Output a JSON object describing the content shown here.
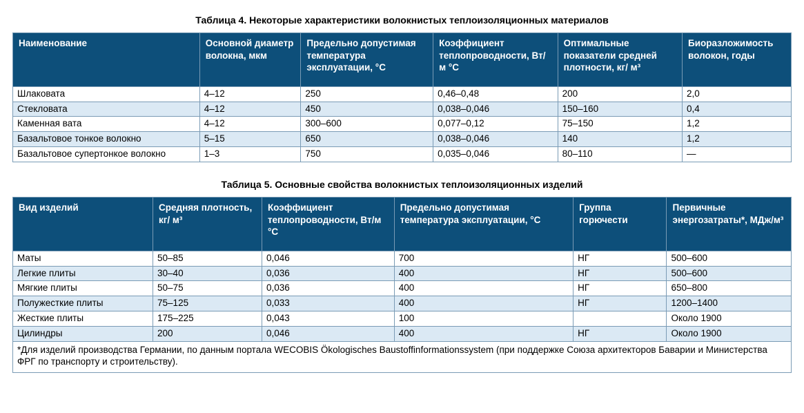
{
  "table4": {
    "title": "Таблица 4. Некоторые характеристики волокнистых теплоизоляционных материалов",
    "columns": [
      "Наименование",
      "Основной диаметр волокна, мкм",
      "Предельно допустимая температура эксплуатации, °С",
      "Коэффициент теплопроводности, Вт/м °С",
      "Оптимальные показатели средней плотности, кг/ м³",
      "Биоразложимость волокон, годы"
    ],
    "col_widths_pct": [
      24,
      13,
      17,
      16,
      16,
      14
    ],
    "rows": [
      {
        "cells": [
          "Шлаковата",
          "4–12",
          "250",
          "0,46–0,48",
          "200",
          "2,0"
        ],
        "stripe": false
      },
      {
        "cells": [
          "Стекловата",
          "4–12",
          "450",
          "0,038–0,046",
          "150–160",
          "0,4"
        ],
        "stripe": true
      },
      {
        "cells": [
          "Каменная вата",
          "4–12",
          "300–600",
          "0,077–0,12",
          "75–150",
          "1,2"
        ],
        "stripe": false
      },
      {
        "cells": [
          "Базальтовое тонкое волокно",
          "5–15",
          "650",
          "0,038–0,046",
          "140",
          "1,2"
        ],
        "stripe": true
      },
      {
        "cells": [
          "Базальтовое супертонкое волокно",
          "1–3",
          "750",
          "0,035–0,046",
          "80–110",
          "—"
        ],
        "stripe": false
      }
    ]
  },
  "table5": {
    "title": "Таблица 5. Основные свойства волокнистых теплоизоляционных изделий",
    "columns": [
      "Вид изделий",
      "Средняя плотность, кг/ м³",
      "Коэффициент теплопроводности, Вт/м °С",
      "Предельно допустимая температура эксплуатации, °С",
      "Группа горючести",
      "Первичные энергозатраты*, МДж/м³"
    ],
    "col_widths_pct": [
      18,
      14,
      17,
      23,
      12,
      16
    ],
    "rows": [
      {
        "cells": [
          "Маты",
          "50–85",
          "0,046",
          "700",
          "НГ",
          "500–600"
        ],
        "stripe": false
      },
      {
        "cells": [
          "Легкие плиты",
          "30–40",
          "0,036",
          "400",
          "НГ",
          "500–600"
        ],
        "stripe": true
      },
      {
        "cells": [
          "Мягкие плиты",
          "50–75",
          "0,036",
          "400",
          "НГ",
          "650–800"
        ],
        "stripe": false
      },
      {
        "cells": [
          "Полужесткие плиты",
          "75–125",
          "0,033",
          "400",
          "НГ",
          "1200–1400"
        ],
        "stripe": true
      },
      {
        "cells": [
          "Жесткие плиты",
          "175–225",
          "0,043",
          "100",
          "",
          "Около 1900"
        ],
        "stripe": false
      },
      {
        "cells": [
          "Цилиндры",
          "200",
          "0,046",
          "400",
          "НГ",
          "Около 1900"
        ],
        "stripe": true
      }
    ],
    "footnote": "*Для изделий производства Германии, по данным портала WECOBIS Ökologisches Baustoffinformationssystem (при поддержке Союза архитекторов Баварии и Министерства ФРГ по транспорту и строительству)."
  },
  "colors": {
    "header_bg": "#0d4f7a",
    "header_fg": "#ffffff",
    "border": "#7a9bb5",
    "stripe": "#dbe9f4",
    "plain": "#ffffff"
  }
}
